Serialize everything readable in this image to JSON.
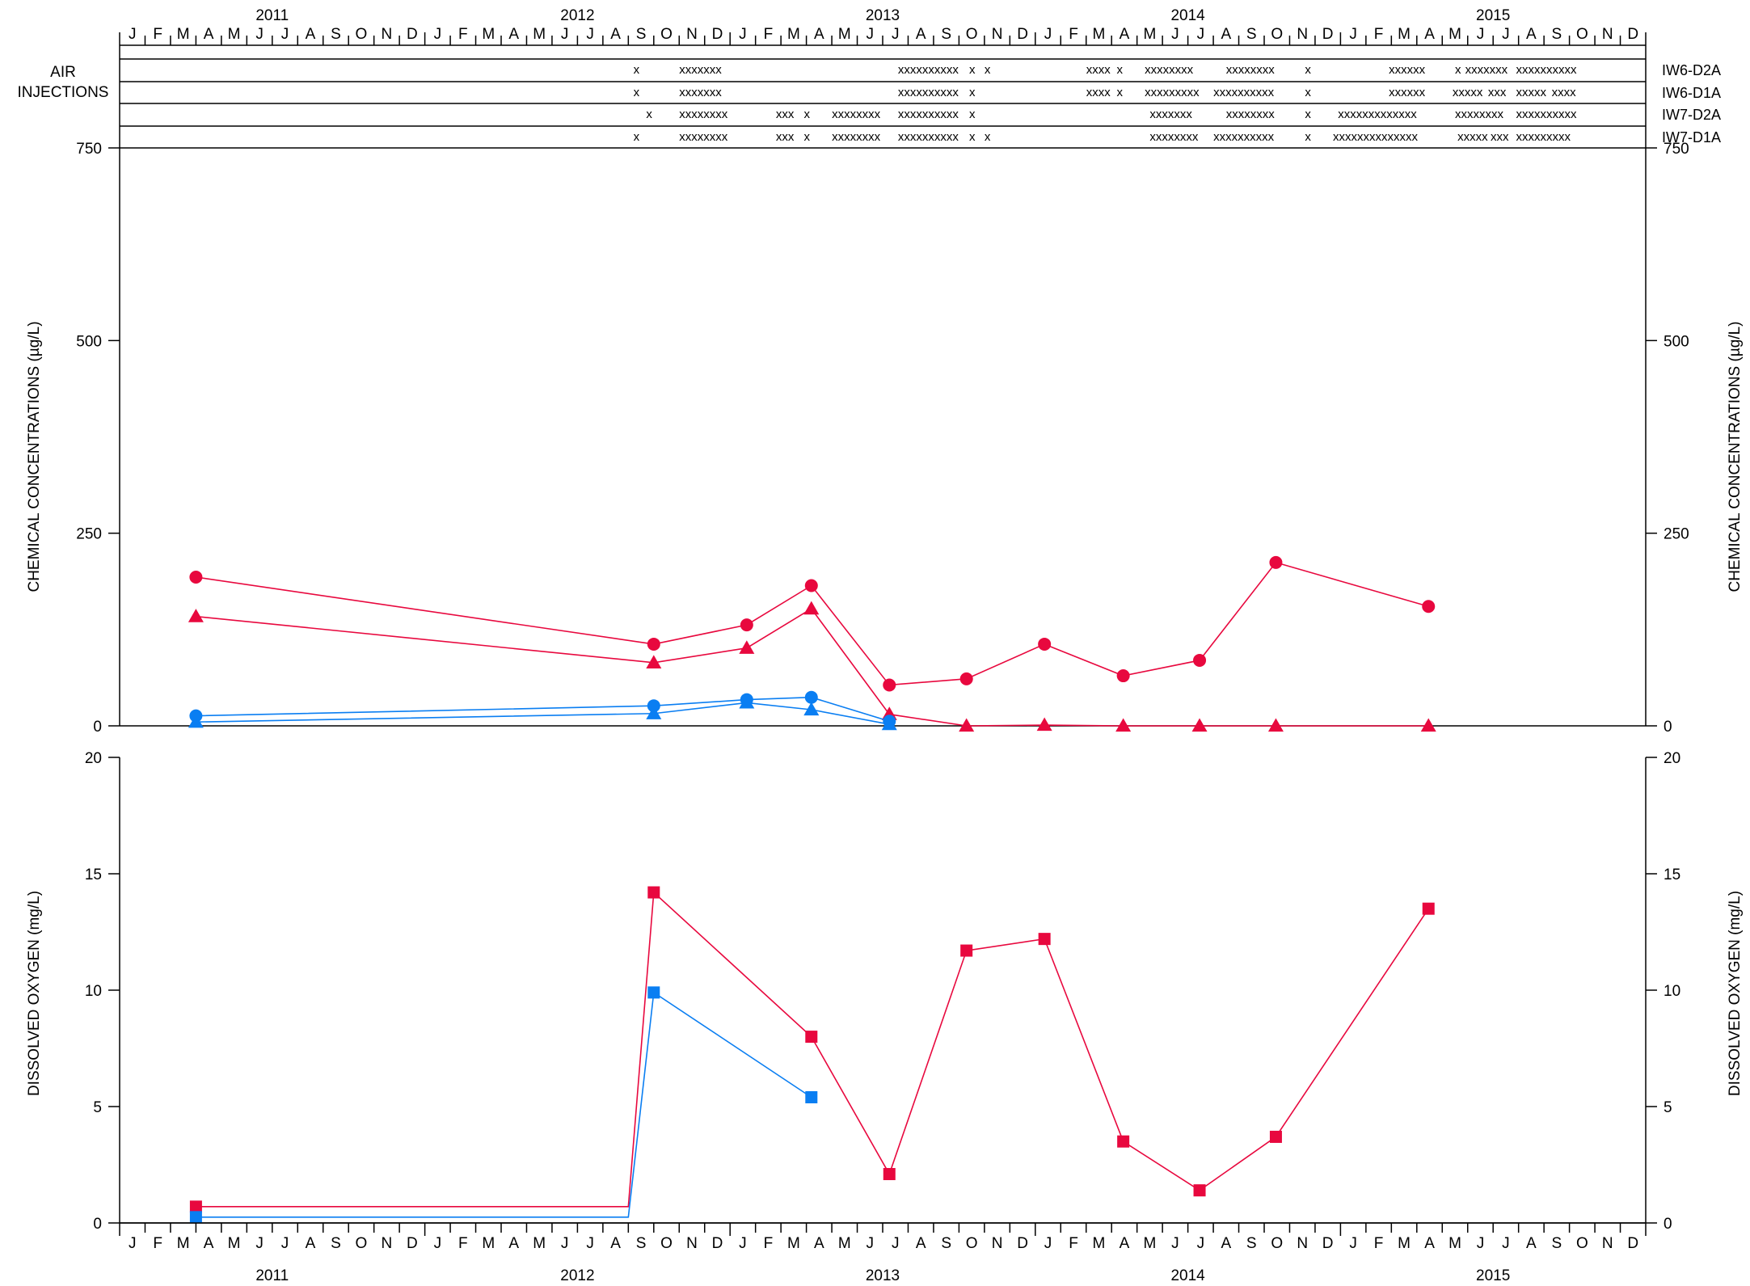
{
  "months": [
    "J",
    "F",
    "M",
    "A",
    "M",
    "J",
    "J",
    "A",
    "S",
    "O",
    "N",
    "D",
    "J",
    "F",
    "M",
    "A",
    "M",
    "J",
    "J",
    "A",
    "S",
    "O",
    "N",
    "D",
    "J",
    "F",
    "M",
    "A",
    "M",
    "J",
    "J",
    "A",
    "S",
    "O",
    "N",
    "D",
    "J",
    "F",
    "M",
    "A",
    "M",
    "J",
    "J",
    "A",
    "S",
    "O",
    "N",
    "D",
    "J",
    "F",
    "M",
    "A",
    "M",
    "J",
    "J",
    "A",
    "S",
    "O",
    "N",
    "D"
  ],
  "years": [
    "2011",
    "2012",
    "2013",
    "2014",
    "2015"
  ],
  "injections": {
    "title_line1": "AIR",
    "title_line2": "INJECTIONS",
    "rows": [
      {
        "well": "IW6-D2A",
        "text": [
          {
            "m": 20.2,
            "t": "x"
          },
          {
            "m": 22.0,
            "t": "xxxxxxx"
          },
          {
            "m": 30.6,
            "t": "xxxxxxxxxx"
          },
          {
            "m": 33.4,
            "t": "x"
          },
          {
            "m": 34.0,
            "t": "x"
          },
          {
            "m": 38.0,
            "t": "xxxx"
          },
          {
            "m": 39.2,
            "t": "x"
          },
          {
            "m": 40.3,
            "t": "xxxxxxxx"
          },
          {
            "m": 43.5,
            "t": "xxxxxxxx"
          },
          {
            "m": 46.6,
            "t": "x"
          },
          {
            "m": 49.9,
            "t": "xxxxxx"
          },
          {
            "m": 52.5,
            "t": "x"
          },
          {
            "m": 52.9,
            "t": "xxxxxxx"
          },
          {
            "m": 54.9,
            "t": "xxxxxxxxxx"
          }
        ]
      },
      {
        "well": "IW6-D1A",
        "text": [
          {
            "m": 20.2,
            "t": "x"
          },
          {
            "m": 22.0,
            "t": "xxxxxxx"
          },
          {
            "m": 30.6,
            "t": "xxxxxxxxxx"
          },
          {
            "m": 33.4,
            "t": "x"
          },
          {
            "m": 38.0,
            "t": "xxxx"
          },
          {
            "m": 39.2,
            "t": "x"
          },
          {
            "m": 40.3,
            "t": "xxxxxxxxx"
          },
          {
            "m": 43.0,
            "t": "xxxxxxxxxx"
          },
          {
            "m": 46.6,
            "t": "x"
          },
          {
            "m": 49.9,
            "t": "xxxxxx"
          },
          {
            "m": 52.4,
            "t": "xxxxx"
          },
          {
            "m": 53.8,
            "t": "xxx"
          },
          {
            "m": 54.9,
            "t": "xxxxx"
          },
          {
            "m": 56.3,
            "t": "xxxx"
          }
        ]
      },
      {
        "well": "IW7-D2A",
        "text": [
          {
            "m": 20.7,
            "t": "x"
          },
          {
            "m": 22.0,
            "t": "xxxxxxxx"
          },
          {
            "m": 25.8,
            "t": "xxx"
          },
          {
            "m": 26.9,
            "t": "x"
          },
          {
            "m": 28.0,
            "t": "xxxxxxxx"
          },
          {
            "m": 30.6,
            "t": "xxxxxxxxxx"
          },
          {
            "m": 33.4,
            "t": "x"
          },
          {
            "m": 40.5,
            "t": "xxxxxxx"
          },
          {
            "m": 43.5,
            "t": "xxxxxxxx"
          },
          {
            "m": 46.6,
            "t": "x"
          },
          {
            "m": 47.9,
            "t": "xxxxxxxxxxxxx"
          },
          {
            "m": 52.5,
            "t": "xxxxxxxx"
          },
          {
            "m": 54.9,
            "t": "xxxxxxxxxx"
          }
        ]
      },
      {
        "well": "IW7-D1A",
        "text": [
          {
            "m": 20.2,
            "t": "x"
          },
          {
            "m": 22.0,
            "t": "xxxxxxxx"
          },
          {
            "m": 25.8,
            "t": "xxx"
          },
          {
            "m": 26.9,
            "t": "x"
          },
          {
            "m": 28.0,
            "t": "xxxxxxxx"
          },
          {
            "m": 30.6,
            "t": "xxxxxxxxxx"
          },
          {
            "m": 33.4,
            "t": "x"
          },
          {
            "m": 34.0,
            "t": "x"
          },
          {
            "m": 40.5,
            "t": "xxxxxxxx"
          },
          {
            "m": 43.0,
            "t": "xxxxxxxxxx"
          },
          {
            "m": 46.6,
            "t": "x"
          },
          {
            "m": 47.7,
            "t": "xxxxxxxxxxxxxx"
          },
          {
            "m": 52.6,
            "t": "xxxxx"
          },
          {
            "m": 53.9,
            "t": "xxx"
          },
          {
            "m": 54.9,
            "t": "xxxxxxxxx"
          }
        ]
      }
    ]
  },
  "colors": {
    "red": "#e8083e",
    "blue": "#0a7ef2",
    "axis": "#000000"
  },
  "chart_data": [
    {
      "type": "line",
      "ylabel": "CHEMICAL CONCENTRATIONS (µg/L)",
      "ylim": [
        0,
        750
      ],
      "yticks": [
        0,
        250,
        500,
        750
      ],
      "xlim": [
        "2011-01",
        "2015-12"
      ],
      "series": [
        {
          "color": "red",
          "marker": "circle",
          "points": [
            [
              "2011-04-01",
              193
            ],
            [
              "2012-10-01",
              106
            ],
            [
              "2013-01-21",
              131
            ],
            [
              "2013-04-07",
              182
            ],
            [
              "2013-07-09",
              53
            ],
            [
              "2013-10-10",
              61
            ],
            [
              "2014-01-12",
              106
            ],
            [
              "2014-04-15",
              65
            ],
            [
              "2014-07-15",
              85
            ],
            [
              "2014-10-15",
              212
            ],
            [
              "2015-04-15",
              155
            ]
          ]
        },
        {
          "color": "red",
          "marker": "triangle",
          "points": [
            [
              "2011-04-01",
              142
            ],
            [
              "2012-10-01",
              82
            ],
            [
              "2013-01-21",
              101
            ],
            [
              "2013-04-07",
              152
            ],
            [
              "2013-07-09",
              15
            ],
            [
              "2013-10-10",
              0
            ],
            [
              "2014-01-12",
              1
            ],
            [
              "2014-04-15",
              0
            ],
            [
              "2014-07-15",
              0
            ],
            [
              "2014-10-15",
              0
            ],
            [
              "2015-04-15",
              0
            ]
          ]
        },
        {
          "color": "blue",
          "marker": "circle",
          "points": [
            [
              "2011-04-01",
              13
            ],
            [
              "2012-10-01",
              26
            ],
            [
              "2013-01-21",
              34
            ],
            [
              "2013-04-07",
              37
            ],
            [
              "2013-07-09",
              6
            ]
          ]
        },
        {
          "color": "blue",
          "marker": "triangle",
          "points": [
            [
              "2011-04-01",
              5
            ],
            [
              "2012-10-01",
              16
            ],
            [
              "2013-01-21",
              30
            ],
            [
              "2013-04-07",
              21
            ],
            [
              "2013-07-09",
              2
            ]
          ]
        }
      ]
    },
    {
      "type": "line",
      "ylabel": "DISSOLVED OXYGEN (mg/L)",
      "ylim": [
        0,
        20
      ],
      "yticks": [
        0,
        5,
        10,
        15,
        20
      ],
      "xlim": [
        "2011-01",
        "2015-12"
      ],
      "series": [
        {
          "color": "red",
          "marker": "square",
          "points": [
            [
              "2011-04-01",
              0.7
            ],
            [
              "2012-09-01",
              0.7
            ],
            [
              "2012-10-01",
              14.2
            ],
            [
              "2013-04-07",
              8.0
            ],
            [
              "2013-07-09",
              2.1
            ],
            [
              "2013-10-10",
              11.7
            ],
            [
              "2014-01-12",
              12.2
            ],
            [
              "2014-04-15",
              3.5
            ],
            [
              "2014-07-15",
              1.4
            ],
            [
              "2014-10-15",
              3.7
            ],
            [
              "2015-04-15",
              13.5
            ]
          ]
        },
        {
          "color": "blue",
          "marker": "square",
          "points": [
            [
              "2011-04-01",
              0.25
            ],
            [
              "2012-09-01",
              0.25
            ],
            [
              "2012-10-01",
              9.9
            ],
            [
              "2013-04-07",
              5.4
            ]
          ]
        }
      ]
    }
  ]
}
